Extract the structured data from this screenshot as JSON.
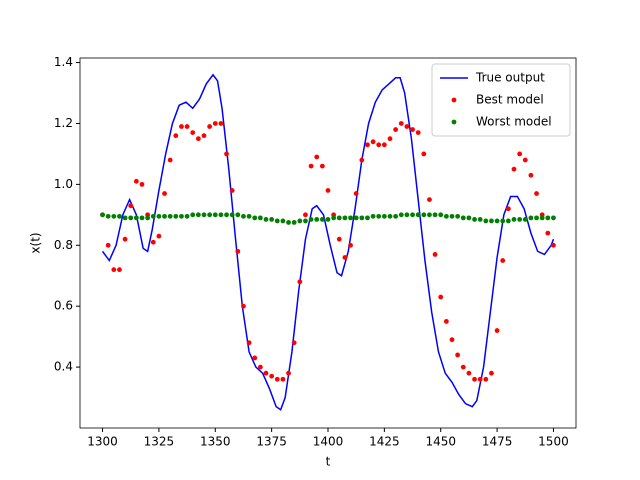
{
  "chart_data": {
    "type": "line-scatter",
    "xlabel": "t",
    "ylabel": "x(t)",
    "xlim": [
      1290,
      1510
    ],
    "ylim": [
      0.2,
      1.415
    ],
    "xticks": [
      1300,
      1325,
      1350,
      1375,
      1400,
      1425,
      1450,
      1475,
      1500
    ],
    "yticks": [
      0.4,
      0.6,
      0.8,
      {
        "value": 1,
        "label": "1.0"
      },
      1.2,
      1.4
    ],
    "legend": "upper right",
    "series": [
      {
        "name": "True output",
        "color": "#0000ff",
        "kind": "line",
        "x": [
          1300,
          1303,
          1306,
          1309,
          1312,
          1315,
          1318,
          1320,
          1322,
          1325,
          1328,
          1331,
          1334,
          1337,
          1340,
          1343,
          1346,
          1349,
          1351,
          1353,
          1356,
          1359,
          1362,
          1365,
          1368,
          1371,
          1374,
          1377,
          1379,
          1381,
          1384,
          1387,
          1390,
          1393,
          1395,
          1398,
          1401,
          1404,
          1406,
          1409,
          1412,
          1415,
          1418,
          1421,
          1424,
          1427,
          1430,
          1432,
          1434,
          1437,
          1440,
          1443,
          1446,
          1449,
          1452,
          1455,
          1458,
          1461,
          1464,
          1466,
          1469,
          1472,
          1475,
          1478,
          1481,
          1484,
          1487,
          1490,
          1493,
          1496,
          1499,
          1500
        ],
        "values": [
          0.78,
          0.75,
          0.8,
          0.9,
          0.95,
          0.9,
          0.79,
          0.78,
          0.85,
          0.98,
          1.1,
          1.2,
          1.26,
          1.27,
          1.25,
          1.28,
          1.33,
          1.36,
          1.34,
          1.25,
          1.05,
          0.82,
          0.6,
          0.45,
          0.4,
          0.38,
          0.33,
          0.27,
          0.26,
          0.3,
          0.45,
          0.65,
          0.82,
          0.92,
          0.93,
          0.9,
          0.8,
          0.71,
          0.7,
          0.78,
          0.92,
          1.08,
          1.2,
          1.27,
          1.31,
          1.33,
          1.35,
          1.35,
          1.3,
          1.15,
          0.95,
          0.75,
          0.58,
          0.45,
          0.38,
          0.35,
          0.31,
          0.28,
          0.27,
          0.29,
          0.4,
          0.58,
          0.76,
          0.9,
          0.96,
          0.96,
          0.92,
          0.84,
          0.78,
          0.77,
          0.8,
          0.82
        ]
      },
      {
        "name": "Best model",
        "color": "#ff0000",
        "kind": "scatter",
        "x": [
          1300,
          1302.5,
          1305,
          1307.5,
          1310,
          1312.5,
          1315,
          1317.5,
          1320,
          1322.5,
          1325,
          1327.5,
          1330,
          1332.5,
          1335,
          1337.5,
          1340,
          1342.5,
          1345,
          1347.5,
          1350,
          1352.5,
          1355,
          1357.5,
          1360,
          1362.5,
          1365,
          1367.5,
          1370,
          1372.5,
          1375,
          1377.5,
          1380,
          1382.5,
          1385,
          1387.5,
          1390,
          1392.5,
          1395,
          1397.5,
          1400,
          1402.5,
          1405,
          1407.5,
          1410,
          1412.5,
          1415,
          1417.5,
          1420,
          1422.5,
          1425,
          1427.5,
          1430,
          1432.5,
          1435,
          1437.5,
          1440,
          1442.5,
          1445,
          1447.5,
          1450,
          1452.5,
          1455,
          1457.5,
          1460,
          1462.5,
          1465,
          1467.5,
          1470,
          1472.5,
          1475,
          1477.5,
          1480,
          1482.5,
          1485,
          1487.5,
          1490,
          1492.5,
          1495,
          1497.5,
          1500
        ],
        "values": [
          0.9,
          0.8,
          0.72,
          0.72,
          0.82,
          0.93,
          1.01,
          1.0,
          0.9,
          0.81,
          0.83,
          0.97,
          1.08,
          1.16,
          1.19,
          1.19,
          1.17,
          1.15,
          1.16,
          1.19,
          1.2,
          1.2,
          1.1,
          0.98,
          0.78,
          0.6,
          0.48,
          0.43,
          0.4,
          0.38,
          0.37,
          0.36,
          0.36,
          0.38,
          0.48,
          0.68,
          0.9,
          1.06,
          1.09,
          1.06,
          0.98,
          0.9,
          0.82,
          0.76,
          0.8,
          0.97,
          1.08,
          1.13,
          1.14,
          1.13,
          1.13,
          1.15,
          1.18,
          1.2,
          1.19,
          1.18,
          1.17,
          1.1,
          0.95,
          0.77,
          0.63,
          0.55,
          0.49,
          0.44,
          0.4,
          0.38,
          0.36,
          0.36,
          0.36,
          0.38,
          0.52,
          0.75,
          0.92,
          1.05,
          1.1,
          1.08,
          1.03,
          0.97,
          0.9,
          0.84,
          0.8
        ]
      },
      {
        "name": "Worst model",
        "color": "#008000",
        "kind": "scatter",
        "x": [
          1300,
          1302.5,
          1305,
          1307.5,
          1310,
          1312.5,
          1315,
          1317.5,
          1320,
          1322.5,
          1325,
          1327.5,
          1330,
          1332.5,
          1335,
          1337.5,
          1340,
          1342.5,
          1345,
          1347.5,
          1350,
          1352.5,
          1355,
          1357.5,
          1360,
          1362.5,
          1365,
          1367.5,
          1370,
          1372.5,
          1375,
          1377.5,
          1380,
          1382.5,
          1385,
          1387.5,
          1390,
          1392.5,
          1395,
          1397.5,
          1400,
          1402.5,
          1405,
          1407.5,
          1410,
          1412.5,
          1415,
          1417.5,
          1420,
          1422.5,
          1425,
          1427.5,
          1430,
          1432.5,
          1435,
          1437.5,
          1440,
          1442.5,
          1445,
          1447.5,
          1450,
          1452.5,
          1455,
          1457.5,
          1460,
          1462.5,
          1465,
          1467.5,
          1470,
          1472.5,
          1475,
          1477.5,
          1480,
          1482.5,
          1485,
          1487.5,
          1490,
          1492.5,
          1495,
          1497.5,
          1500
        ],
        "values": [
          0.9,
          0.895,
          0.895,
          0.895,
          0.89,
          0.89,
          0.89,
          0.89,
          0.89,
          0.895,
          0.895,
          0.895,
          0.895,
          0.895,
          0.895,
          0.895,
          0.9,
          0.9,
          0.9,
          0.9,
          0.9,
          0.9,
          0.9,
          0.9,
          0.9,
          0.895,
          0.895,
          0.89,
          0.89,
          0.885,
          0.885,
          0.88,
          0.88,
          0.875,
          0.875,
          0.88,
          0.88,
          0.885,
          0.885,
          0.885,
          0.885,
          0.89,
          0.89,
          0.89,
          0.89,
          0.89,
          0.89,
          0.89,
          0.895,
          0.895,
          0.895,
          0.895,
          0.895,
          0.9,
          0.9,
          0.9,
          0.9,
          0.9,
          0.9,
          0.9,
          0.9,
          0.895,
          0.895,
          0.895,
          0.89,
          0.89,
          0.885,
          0.885,
          0.88,
          0.88,
          0.88,
          0.88,
          0.88,
          0.885,
          0.885,
          0.885,
          0.89,
          0.89,
          0.89,
          0.89,
          0.89
        ]
      }
    ]
  }
}
